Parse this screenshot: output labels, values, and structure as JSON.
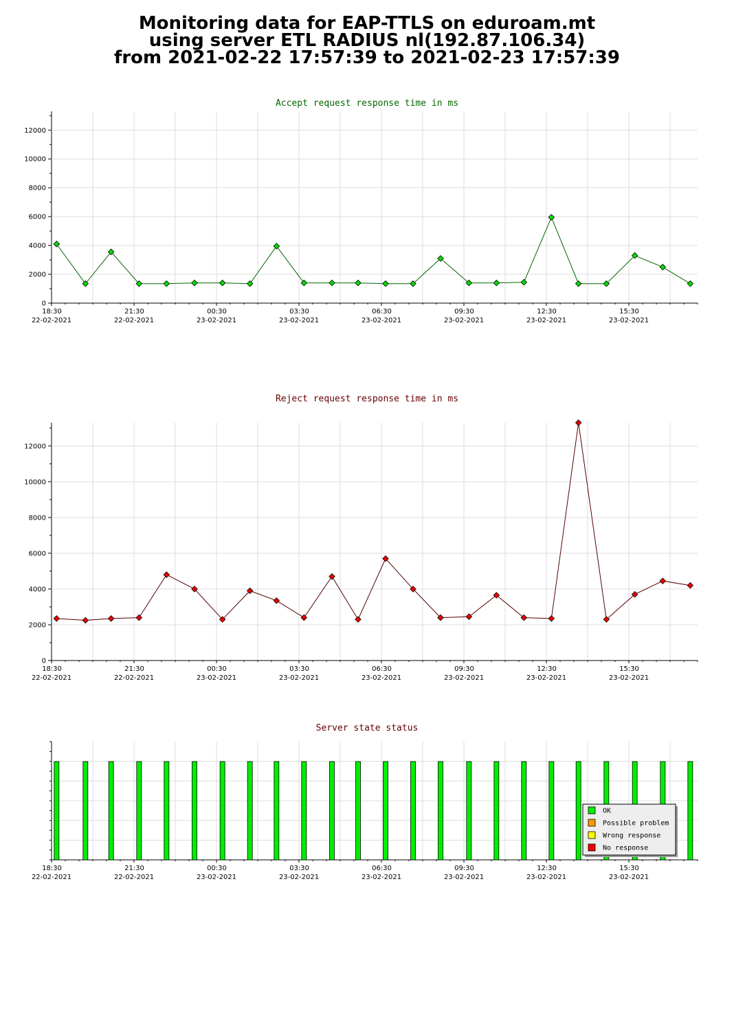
{
  "header": {
    "line1": "Monitoring data for EAP-TTLS on eduroam.mt",
    "line2": "using server ETL RADIUS nl(192.87.106.34)",
    "line3": "from 2021-02-22 17:57:39 to 2021-02-23 17:57:39"
  },
  "colors": {
    "accept_title": "#006600",
    "reject_title": "#660000",
    "state_title": "#660000",
    "accept_point": "#00dd00",
    "reject_point": "#ee0000",
    "accept_line": "#006600",
    "reject_line": "#550000",
    "ok": "#00ee00",
    "possible_problem": "#ff9900",
    "wrong_response": "#ffff00",
    "no_response": "#ee0000",
    "grid": "#dddddd"
  },
  "x_ticks": [
    {
      "time": "18:30",
      "date": "22-02-2021"
    },
    {
      "time": "21:30",
      "date": "22-02-2021"
    },
    {
      "time": "00:30",
      "date": "23-02-2021"
    },
    {
      "time": "03:30",
      "date": "23-02-2021"
    },
    {
      "time": "06:30",
      "date": "23-02-2021"
    },
    {
      "time": "09:30",
      "date": "23-02-2021"
    },
    {
      "time": "12:30",
      "date": "23-02-2021"
    },
    {
      "time": "15:30",
      "date": "23-02-2021"
    }
  ],
  "chart_data": [
    {
      "type": "line",
      "title": "Accept request response time in ms",
      "xlabel": "",
      "ylabel": "",
      "ylim": [
        0,
        13300
      ],
      "y_ticks": [
        0,
        2000,
        4000,
        6000,
        8000,
        10000,
        12000
      ],
      "grid": true,
      "x_range": [
        "2021-02-22 18:30",
        "2021-02-23 18:00"
      ],
      "x": [
        "2021-02-22 18:41",
        "2021-02-22 19:44",
        "2021-02-22 20:40",
        "2021-02-22 21:41",
        "2021-02-22 22:41",
        "2021-02-22 23:42",
        "2021-02-23 00:43",
        "2021-02-23 01:43",
        "2021-02-23 02:41",
        "2021-02-23 03:41",
        "2021-02-23 04:42",
        "2021-02-23 05:39",
        "2021-02-23 06:39",
        "2021-02-23 07:39",
        "2021-02-23 08:39",
        "2021-02-23 09:41",
        "2021-02-23 10:41",
        "2021-02-23 11:41",
        "2021-02-23 12:41",
        "2021-02-23 13:40",
        "2021-02-23 14:41",
        "2021-02-23 15:43",
        "2021-02-23 16:44",
        "2021-02-23 17:44"
      ],
      "values": [
        4100,
        1350,
        3550,
        1350,
        1350,
        1400,
        1400,
        1350,
        3950,
        1400,
        1400,
        1400,
        1350,
        1350,
        3100,
        1400,
        1400,
        1450,
        5950,
        1350,
        1350,
        3300,
        2500,
        1350
      ]
    },
    {
      "type": "line",
      "title": "Reject request response time in ms",
      "xlabel": "",
      "ylabel": "",
      "ylim": [
        0,
        13300
      ],
      "y_ticks": [
        0,
        2000,
        4000,
        6000,
        8000,
        10000,
        12000
      ],
      "grid": true,
      "x_range": [
        "2021-02-22 18:30",
        "2021-02-23 18:00"
      ],
      "x": [
        "2021-02-22 18:41",
        "2021-02-22 19:44",
        "2021-02-22 20:40",
        "2021-02-22 21:41",
        "2021-02-22 22:41",
        "2021-02-22 23:42",
        "2021-02-23 00:43",
        "2021-02-23 01:43",
        "2021-02-23 02:41",
        "2021-02-23 03:41",
        "2021-02-23 04:42",
        "2021-02-23 05:39",
        "2021-02-23 06:39",
        "2021-02-23 07:39",
        "2021-02-23 08:39",
        "2021-02-23 09:41",
        "2021-02-23 10:41",
        "2021-02-23 11:41",
        "2021-02-23 12:41",
        "2021-02-23 13:40",
        "2021-02-23 14:41",
        "2021-02-23 15:43",
        "2021-02-23 16:44",
        "2021-02-23 17:44"
      ],
      "values": [
        2350,
        2250,
        2350,
        2400,
        4800,
        4000,
        2300,
        3900,
        3350,
        2400,
        4700,
        2300,
        5700,
        4000,
        2400,
        2450,
        3650,
        2400,
        2350,
        13300,
        2300,
        3700,
        4450,
        4200
      ]
    },
    {
      "type": "bar",
      "title": "Server state status",
      "xlabel": "",
      "ylabel": "",
      "grid": true,
      "x_range": [
        "2021-02-22 18:30",
        "2021-02-23 18:00"
      ],
      "x": [
        "2021-02-22 18:41",
        "2021-02-22 19:44",
        "2021-02-22 20:40",
        "2021-02-22 21:41",
        "2021-02-22 22:41",
        "2021-02-22 23:42",
        "2021-02-23 00:43",
        "2021-02-23 01:43",
        "2021-02-23 02:41",
        "2021-02-23 03:41",
        "2021-02-23 04:42",
        "2021-02-23 05:39",
        "2021-02-23 06:39",
        "2021-02-23 07:39",
        "2021-02-23 08:39",
        "2021-02-23 09:41",
        "2021-02-23 10:41",
        "2021-02-23 11:41",
        "2021-02-23 12:41",
        "2021-02-23 13:40",
        "2021-02-23 14:41",
        "2021-02-23 15:43",
        "2021-02-23 16:44",
        "2021-02-23 17:44"
      ],
      "states": [
        "OK",
        "OK",
        "OK",
        "OK",
        "OK",
        "OK",
        "OK",
        "OK",
        "OK",
        "OK",
        "OK",
        "OK",
        "OK",
        "OK",
        "OK",
        "OK",
        "OK",
        "OK",
        "OK",
        "OK",
        "OK",
        "OK",
        "OK",
        "OK"
      ],
      "legend_position": "bottom-right",
      "legend": [
        "OK",
        "Possible problem",
        "Wrong response",
        "No response"
      ]
    }
  ]
}
